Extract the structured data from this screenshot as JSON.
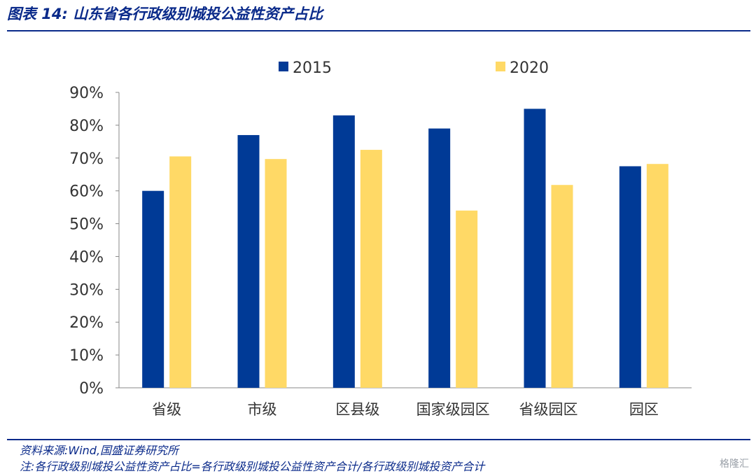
{
  "figure": {
    "title": "图表 14:  山东省各行政级别城投公益性资产占比",
    "source": "资料来源:Wind,国盛证券研究所",
    "note": "注:各行政级别城投公益性资产占比=各行政级别城投公益性资产合计/各行政级别城投资产合计",
    "watermark": "格隆汇"
  },
  "colors": {
    "accent": "#0a2a8a",
    "series_2015": "#003a96",
    "series_2020": "#ffd966"
  },
  "chart_data": {
    "type": "bar",
    "categories": [
      "省级",
      "市级",
      "区县级",
      "国家级园区",
      "省级园区",
      "园区"
    ],
    "series": [
      {
        "name": "2015",
        "values": [
          0.6,
          0.77,
          0.83,
          0.79,
          0.85,
          0.675
        ]
      },
      {
        "name": "2020",
        "values": [
          0.705,
          0.697,
          0.725,
          0.54,
          0.618,
          0.682
        ]
      }
    ],
    "ylim": [
      0,
      0.9
    ],
    "yticks": [
      "0%",
      "10%",
      "20%",
      "30%",
      "40%",
      "50%",
      "60%",
      "70%",
      "80%",
      "90%"
    ],
    "legend_position": "top",
    "grid": false
  }
}
